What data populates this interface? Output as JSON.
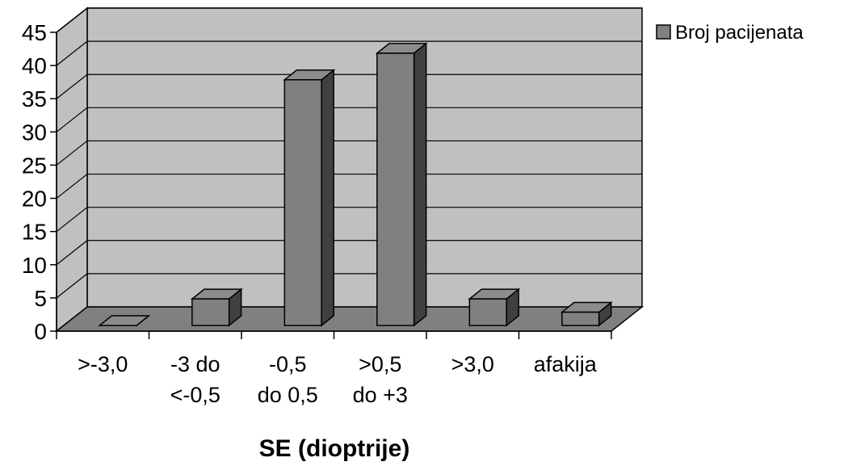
{
  "chart_data": {
    "type": "bar",
    "categories": [
      [
        ">-3,0"
      ],
      [
        "-3 do",
        "<-0,5"
      ],
      [
        "-0,5",
        "do 0,5"
      ],
      [
        ">0,5",
        "do +3"
      ],
      [
        ">3,0"
      ],
      [
        "afakija"
      ]
    ],
    "series": [
      {
        "name": "Broj pacijenata",
        "values": [
          0,
          4,
          37,
          41,
          4,
          2
        ]
      }
    ],
    "title": "",
    "xlabel": "SE (dioptrije)",
    "ylabel": "",
    "ylim": [
      0,
      45
    ],
    "yticks": [
      "0",
      "5",
      "10",
      "15",
      "20",
      "25",
      "30",
      "35",
      "40",
      "45"
    ],
    "grid": true,
    "legend_position": "top-right",
    "style": "3d-column",
    "colors": {
      "wall": "#c0c0c0",
      "floor": "#808080",
      "bar_front": "#808080",
      "bar_top": "#8c8c8c",
      "bar_side": "#404040"
    }
  }
}
